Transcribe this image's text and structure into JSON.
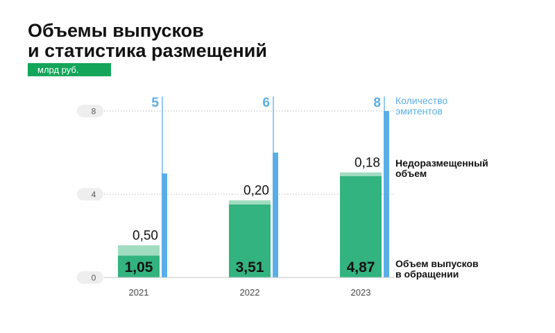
{
  "title": {
    "line1": "Объемы выпусков",
    "line2": "и статистика размещений"
  },
  "unit": "млрд руб.",
  "legend": {
    "issuers": [
      "Количество",
      "эмитентов"
    ],
    "unplaced": [
      "Недоразмещенный",
      "объем"
    ],
    "volume": [
      "Объем выпусков",
      "в обращении"
    ]
  },
  "colors": {
    "volume": "#32b37f",
    "unplaced": "#a1dcc1",
    "issuers": "#5aaee8",
    "axis_pill": "#eeeeee",
    "axis_text": "#555555",
    "grid": "#c8c8c8"
  },
  "chart_data": {
    "type": "bar",
    "stacked": true,
    "categories": [
      "2021",
      "2022",
      "2023"
    ],
    "ylim": [
      0,
      8
    ],
    "yticks": [
      0,
      4,
      8
    ],
    "series": [
      {
        "name": "Объем выпусков в обращении",
        "values": [
          1.05,
          3.51,
          4.87
        ],
        "labels": [
          "1,05",
          "3,51",
          "4,87"
        ]
      },
      {
        "name": "Недоразмещенный объем",
        "values": [
          0.5,
          0.2,
          0.18
        ],
        "labels": [
          "0,50",
          "0,20",
          "0,18"
        ]
      }
    ],
    "secondary_series": {
      "name": "Количество эмитентов",
      "values": [
        5,
        6,
        8
      ],
      "labels": [
        "5",
        "6",
        "8"
      ],
      "ylim": [
        0,
        8.7
      ]
    }
  }
}
